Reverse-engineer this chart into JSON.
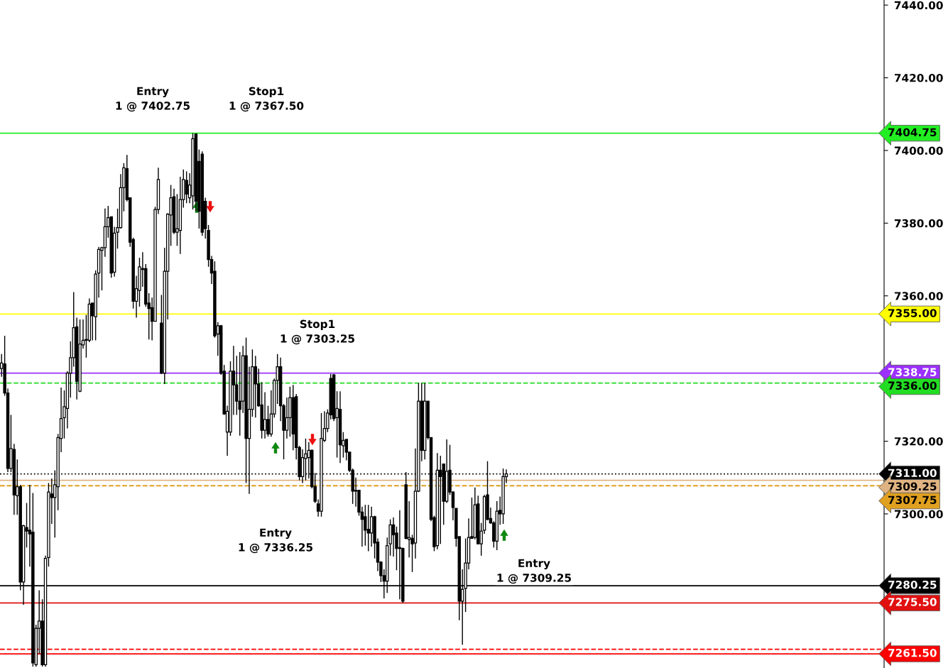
{
  "chart_data": {
    "type": "candlestick",
    "categories": [
      null,
      null,
      null,
      null,
      null,
      null,
      null,
      null,
      null,
      null,
      null,
      null,
      null,
      null,
      null,
      null,
      null,
      null,
      null,
      null,
      null,
      null,
      null,
      null,
      null,
      null,
      null,
      null,
      null,
      null,
      null,
      null,
      null,
      null,
      null,
      null,
      null,
      null,
      null,
      null,
      null,
      null,
      null,
      null,
      null,
      null,
      null,
      null,
      null,
      null,
      null,
      null,
      null,
      null,
      null,
      null,
      null,
      null,
      null,
      null,
      null,
      null,
      null,
      null,
      null,
      null,
      null,
      null,
      null,
      null,
      null,
      null,
      null,
      null,
      null,
      null,
      null,
      null,
      null,
      null,
      null,
      null,
      null,
      null,
      null,
      null,
      null,
      null,
      null,
      null,
      null,
      null,
      null,
      null,
      null,
      null,
      null,
      null,
      null,
      null,
      null,
      null,
      null,
      null,
      null,
      null,
      null,
      null,
      null,
      null,
      null,
      null,
      null,
      null,
      null,
      null,
      null,
      null,
      null,
      null,
      null,
      null,
      null,
      null,
      null,
      null,
      null,
      null,
      null,
      null,
      null,
      null,
      null,
      null,
      null,
      null,
      null,
      null,
      null,
      null,
      null,
      null,
      null,
      null,
      null,
      null,
      null,
      null,
      null,
      null,
      null,
      null,
      null,
      null,
      null,
      null,
      null,
      null,
      null,
      null,
      null,
      null,
      null,
      null,
      null,
      null,
      null,
      null,
      null,
      null,
      null,
      null,
      null,
      null,
      null,
      null,
      null,
      null,
      null,
      null,
      null,
      null,
      null,
      null,
      null,
      null,
      null,
      null,
      null,
      null,
      null,
      null,
      null,
      null,
      null,
      null,
      null,
      null,
      null,
      null,
      null,
      null,
      null,
      null,
      null,
      null,
      null,
      null,
      null,
      null,
      null,
      null,
      null,
      null,
      null,
      null,
      null,
      null,
      null,
      null,
      null,
      null,
      null,
      null,
      null,
      null,
      null,
      null,
      null,
      null,
      null,
      null,
      null,
      null,
      null,
      null,
      null,
      null,
      null,
      null,
      null,
      null,
      null,
      null,
      null,
      null,
      null,
      null,
      null,
      null,
      null,
      null,
      null,
      null,
      null,
      null,
      null,
      null,
      null,
      null,
      null,
      null,
      null,
      null,
      null,
      null,
      null,
      null,
      null,
      null,
      null,
      null,
      null,
      null,
      null,
      null,
      null,
      null,
      null,
      null,
      null,
      null
    ],
    "ohlc": [
      [
        7340,
        7344,
        7337.75,
        7341.5
      ],
      [
        7341.25,
        7349,
        7332.5,
        7333.25
      ],
      [
        7333.25,
        7334.5,
        7311.5,
        7312.5
      ],
      [
        7312.5,
        7327.25,
        7311.5,
        7318
      ],
      [
        7317.75,
        7319.25,
        7299.75,
        7305.25
      ],
      [
        7305,
        7315,
        7299.75,
        7307.5
      ],
      [
        7307.5,
        7308,
        7279,
        7281.25
      ],
      [
        7281.25,
        7297,
        7275,
        7296.75
      ],
      [
        7296.25,
        7303,
        7290.75,
        7295.25
      ],
      [
        7295.5,
        7308,
        7285.5,
        7294.5
      ],
      [
        7295,
        7305.75,
        7258,
        7259
      ],
      [
        7258.5,
        7269.5,
        7258,
        7268.5
      ],
      [
        7268.5,
        7279,
        7261.5,
        7270.5
      ],
      [
        7270.5,
        7276.5,
        7258,
        7258.5
      ],
      [
        7258.5,
        7288.5,
        7258,
        7287.75
      ],
      [
        7288,
        7308.5,
        7285.5,
        7306
      ],
      [
        7305.5,
        7309.75,
        7297.25,
        7304.5
      ],
      [
        7304.5,
        7312,
        7293.5,
        7308
      ],
      [
        7307.5,
        7322,
        7301,
        7321
      ],
      [
        7320.75,
        7334.75,
        7317,
        7326.25
      ],
      [
        7326.5,
        7334,
        7320.75,
        7329.5
      ],
      [
        7329,
        7339.25,
        7323.5,
        7338.75
      ],
      [
        7338.75,
        7347.5,
        7332,
        7343
      ],
      [
        7343,
        7361,
        7340.5,
        7351.25
      ],
      [
        7351.5,
        7354,
        7331.5,
        7336.5
      ],
      [
        7333.75,
        7353.5,
        7333.5,
        7346.75
      ],
      [
        7346.5,
        7353.5,
        7345.5,
        7347.75
      ],
      [
        7348,
        7354.75,
        7343,
        7347.75
      ],
      [
        7347.75,
        7359.25,
        7347.25,
        7357.75
      ],
      [
        7358,
        7358,
        7347.75,
        7354.5
      ],
      [
        7354.25,
        7367,
        7347.75,
        7366
      ],
      [
        7366.25,
        7373.5,
        7359.5,
        7372.75
      ],
      [
        7372.5,
        7373.5,
        7361.5,
        7373.25
      ],
      [
        7373.25,
        7384,
        7370.75,
        7379
      ],
      [
        7379,
        7384.75,
        7376,
        7381.5
      ],
      [
        7381.75,
        7381.75,
        7365,
        7366.25
      ],
      [
        7366.5,
        7379,
        7365.25,
        7377.25
      ],
      [
        7377.5,
        7384,
        7373,
        7378.75
      ],
      [
        7378.75,
        7393.5,
        7378.5,
        7389.75
      ],
      [
        7389.75,
        7396.5,
        7383.25,
        7395.25
      ],
      [
        7395,
        7398.75,
        7386,
        7386.5
      ],
      [
        7387,
        7387,
        7373.5,
        7374.75
      ],
      [
        7375.5,
        7376,
        7356.5,
        7358.5
      ],
      [
        7358.5,
        7365.5,
        7354,
        7362
      ],
      [
        7361.5,
        7370.5,
        7357,
        7368
      ],
      [
        7367.25,
        7372,
        7362.5,
        7367.5
      ],
      [
        7367.5,
        7368.75,
        7357,
        7357.75
      ],
      [
        7358,
        7360.75,
        7348,
        7356.5
      ],
      [
        7356.75,
        7359.5,
        7347.75,
        7353
      ],
      [
        7353,
        7384.5,
        7353,
        7383.75
      ],
      [
        7383.75,
        7395.25,
        7382.5,
        7392
      ],
      [
        7352.5,
        7360.25,
        7338.5,
        7338.75
      ],
      [
        7338.75,
        7373.25,
        7335.75,
        7366.75
      ],
      [
        7366.75,
        7382.75,
        7353.5,
        7382.5
      ],
      [
        7382.25,
        7390.5,
        7373.75,
        7387
      ],
      [
        7387.25,
        7389.5,
        7377,
        7377.5
      ],
      [
        7377.5,
        7388,
        7373.75,
        7378.5
      ],
      [
        7378,
        7392.75,
        7371.5,
        7386.5
      ],
      [
        7386.5,
        7394.75,
        7384.25,
        7392
      ],
      [
        7391.75,
        7394.25,
        7385.5,
        7388
      ],
      [
        7387,
        7393.75,
        7385.5,
        7390.5
      ],
      [
        7387.5,
        7404.75,
        7383.75,
        7403.25
      ],
      [
        7404.5,
        7404.75,
        7383.25,
        7386
      ],
      [
        7397,
        7400.25,
        7378.5,
        7383.25
      ],
      [
        7399,
        7399.75,
        7376.5,
        7377.5
      ],
      [
        7386,
        7387,
        7375.75,
        7378.5
      ],
      [
        7378,
        7379.5,
        7368,
        7370
      ],
      [
        7370,
        7371,
        7363.25,
        7366.25
      ],
      [
        7366.75,
        7369.5,
        7348.5,
        7349
      ],
      [
        7349.5,
        7352.75,
        7343.5,
        7351.75
      ],
      [
        7351.75,
        7352,
        7338.25,
        7338.75
      ],
      [
        7339.25,
        7341,
        7327.25,
        7327.5
      ],
      [
        7322.5,
        7329.75,
        7316,
        7328.25
      ],
      [
        7322.5,
        7342,
        7321.5,
        7339.25
      ],
      [
        7339.25,
        7346.25,
        7327.25,
        7335.5
      ],
      [
        7335.5,
        7343.5,
        7327.25,
        7331
      ],
      [
        7331,
        7344.5,
        7321.5,
        7328.75
      ],
      [
        7331,
        7346.25,
        7327.75,
        7343.5
      ],
      [
        7343.5,
        7348.5,
        7308.5,
        7320.75
      ],
      [
        7320.75,
        7340.5,
        7305.5,
        7328.75
      ],
      [
        7328.75,
        7345.25,
        7326.75,
        7340.5
      ],
      [
        7340.5,
        7343.5,
        7326.5,
        7335.75
      ],
      [
        7335.75,
        7340,
        7329.5,
        7329.75
      ],
      [
        7330,
        7336.25,
        7320.75,
        7323
      ],
      [
        7323,
        7333.5,
        7320.75,
        7326
      ],
      [
        7326,
        7329.75,
        7321.25,
        7322
      ],
      [
        7322,
        7334,
        7321.25,
        7327.5
      ],
      [
        7327.5,
        7337.25,
        7326.5,
        7336.75
      ],
      [
        7336.75,
        7344,
        7330.25,
        7340.5
      ],
      [
        7340.5,
        7343,
        7325.5,
        7329.75
      ],
      [
        7329.75,
        7330.25,
        7315,
        7323
      ],
      [
        7323,
        7332,
        7320.75,
        7326.5
      ],
      [
        7326.5,
        7335,
        7321.25,
        7332
      ],
      [
        7332,
        7335.5,
        7317.5,
        7322
      ],
      [
        7332.25,
        7333,
        7315,
        7318.25
      ],
      [
        7318.25,
        7318.75,
        7309.25,
        7310.25
      ],
      [
        7310.25,
        7317.75,
        7308.5,
        7315.5
      ],
      [
        7315.25,
        7320.75,
        7309.25,
        7316.5
      ],
      [
        7315.5,
        7319.75,
        7309.75,
        7317.5
      ],
      [
        7317.5,
        7317.75,
        7307,
        7307.5
      ],
      [
        7307.5,
        7311.25,
        7303,
        7303.5
      ],
      [
        7302.75,
        7304,
        7299.25,
        7300.75
      ],
      [
        7300.75,
        7327.75,
        7299.25,
        7320.75
      ],
      [
        7320.25,
        7328.25,
        7319.75,
        7323.5
      ],
      [
        7323.5,
        7328.75,
        7322.5,
        7327.75
      ],
      [
        7337.25,
        7338.5,
        7326,
        7327.25
      ],
      [
        7338.25,
        7338.5,
        7325.5,
        7326.25
      ],
      [
        7326.5,
        7333.75,
        7315.5,
        7329
      ],
      [
        7328.75,
        7333.75,
        7314,
        7319
      ],
      [
        7318.75,
        7322.5,
        7315.5,
        7320.25
      ],
      [
        7320.5,
        7320.5,
        7314.75,
        7317
      ],
      [
        7317,
        7317,
        7311.5,
        7312
      ],
      [
        7312,
        7312.5,
        7302.75,
        7306.25
      ],
      [
        7306.5,
        7310,
        7302,
        7306.25
      ],
      [
        7306.5,
        7306.5,
        7299.5,
        7300.5
      ],
      [
        7300.5,
        7302,
        7291,
        7298.5
      ],
      [
        7299.25,
        7302.5,
        7291.25,
        7295.5
      ],
      [
        7295.75,
        7302.5,
        7289.75,
        7294.75
      ],
      [
        7294.75,
        7302,
        7291,
        7299.25
      ],
      [
        7299.25,
        7299.5,
        7287.75,
        7292
      ],
      [
        7292.25,
        7293.25,
        7284.25,
        7286.75
      ],
      [
        7286.75,
        7287,
        7281.25,
        7283
      ],
      [
        7283,
        7284.75,
        7276.75,
        7281.5
      ],
      [
        7281.5,
        7293.5,
        7278.25,
        7291.25
      ],
      [
        7291.75,
        7298.5,
        7288.5,
        7297
      ],
      [
        7297,
        7299,
        7288.25,
        7294.25
      ],
      [
        7294.75,
        7296.5,
        7284.5,
        7290.5
      ],
      [
        7290.75,
        7301,
        7276.5,
        7290.5
      ],
      [
        7290.5,
        7290.75,
        7275.5,
        7276
      ],
      [
        7308,
        7311.5,
        7293,
        7293.25
      ],
      [
        7293,
        7303.5,
        7288,
        7293.5
      ],
      [
        7293.25,
        7294.25,
        7284,
        7291.75
      ],
      [
        7292,
        7318,
        7287.75,
        7306.25
      ],
      [
        7306.25,
        7336,
        7306,
        7331
      ],
      [
        7331,
        7336,
        7314.5,
        7317.5
      ],
      [
        7317.5,
        7336,
        7315,
        7331
      ],
      [
        7331,
        7331,
        7320.5,
        7321
      ],
      [
        7321,
        7321,
        7298,
        7298.5
      ],
      [
        7299,
        7299.5,
        7289.75,
        7291
      ],
      [
        7291.25,
        7316.75,
        7290.25,
        7312
      ],
      [
        7312,
        7316,
        7291.75,
        7310.25
      ],
      [
        7313.75,
        7313.75,
        7297,
        7303.5
      ],
      [
        7303.5,
        7320.5,
        7303,
        7311.75
      ],
      [
        7312,
        7319,
        7305.25,
        7306
      ],
      [
        7306,
        7306.25,
        7298.25,
        7301.75
      ],
      [
        7301.5,
        7301.5,
        7291,
        7293.25
      ],
      [
        7293.75,
        7293.75,
        7270.75,
        7276
      ],
      [
        7276,
        7284.75,
        7264,
        7279.25
      ],
      [
        7279.5,
        7293.25,
        7273,
        7286.5
      ],
      [
        7286.5,
        7298.75,
        7284.75,
        7293.5
      ],
      [
        7293.75,
        7304.5,
        7293.25,
        7293.25
      ],
      [
        7293.5,
        7307.25,
        7293,
        7302.5
      ],
      [
        7302.75,
        7305,
        7291.75,
        7291.75
      ],
      [
        7291.75,
        7297.5,
        7288.5,
        7295.25
      ],
      [
        7295.5,
        7305.25,
        7294.5,
        7304.75
      ],
      [
        7305.25,
        7314.5,
        7298.25,
        7298.5
      ],
      [
        7298.75,
        7301.75,
        7297.25,
        7297.5
      ],
      [
        7297.5,
        7298,
        7290.75,
        7292.5
      ],
      [
        7292.5,
        7303.5,
        7290,
        7300.75
      ],
      [
        7301,
        7304.75,
        7297,
        7300
      ],
      [
        7300,
        7312.5,
        7297.25,
        7310.25
      ],
      [
        7310.25,
        7312.25,
        7308.5,
        7311
      ],
      null,
      null,
      null,
      null,
      null,
      null,
      null,
      null,
      null,
      null,
      null,
      null,
      null,
      null,
      null,
      null,
      null,
      null,
      null,
      null,
      null,
      null,
      null,
      null,
      null,
      null,
      null,
      null,
      null,
      null,
      null,
      null,
      null,
      null,
      null,
      null,
      null,
      null,
      null,
      null,
      null,
      null,
      null,
      null,
      null,
      null,
      null,
      null,
      null,
      null,
      null,
      null,
      null,
      null,
      null,
      null,
      null,
      null,
      null,
      null,
      null,
      null,
      null,
      null,
      null,
      null,
      null,
      null,
      null,
      null,
      null,
      null,
      null,
      null,
      null,
      null,
      null,
      null,
      null,
      null,
      null,
      null,
      null,
      null,
      null,
      null,
      null,
      null,
      null,
      null,
      null,
      null,
      null,
      null,
      null,
      null,
      null,
      null,
      null,
      null,
      null,
      null,
      null,
      null,
      null,
      null,
      null,
      null,
      null,
      null,
      null,
      null,
      null,
      null,
      null,
      null,
      null,
      null,
      null,
      null
    ],
    "ylim": [
      7257.6,
      7441.4
    ],
    "yticks": [
      {
        "value": 7300,
        "label": "7300.00"
      },
      {
        "value": 7320,
        "label": "7320.00"
      },
      {
        "value": 7360,
        "label": "7360.00"
      },
      {
        "value": 7380,
        "label": "7380.00"
      },
      {
        "value": 7400,
        "label": "7400.00"
      },
      {
        "value": 7420,
        "label": "7420.00"
      },
      {
        "value": 7440,
        "label": "7440.00"
      }
    ],
    "tick_labels": "y",
    "grid": false,
    "ref_lines": [
      {
        "axis": "y",
        "value": 7404.75,
        "label": "7404.75",
        "color": "#22ee22",
        "line_style": "solid"
      },
      {
        "axis": "y",
        "value": 7355.0,
        "label": "7355.00",
        "color": "#ffff00",
        "line_style": "solid"
      },
      {
        "axis": "y",
        "value": 7338.75,
        "label": "7338.75",
        "color": "#9b30ff",
        "line_style": "solid"
      },
      {
        "axis": "y",
        "value": 7336.0,
        "label": "7336.00",
        "color": "#22dd22",
        "line_style": "dashed"
      },
      {
        "axis": "y",
        "value": 7311.0,
        "label": "7311.00",
        "color": "#000000",
        "line_style": "dotted"
      },
      {
        "axis": "y",
        "value": 7309.25,
        "label": "7309.25",
        "color": "#e0b482",
        "line_style": "solid"
      },
      {
        "axis": "y",
        "value": 7307.75,
        "label": "7307.75",
        "color": "#e0a020",
        "line_style": "dashed"
      },
      {
        "axis": "y",
        "value": 7280.25,
        "label": "7280.25",
        "color": "#000000",
        "line_style": "solid"
      },
      {
        "axis": "y",
        "value": 7275.5,
        "label": "7275.50",
        "color": "#e01010",
        "line_style": "solid"
      },
      {
        "axis": "y",
        "value": 7262.75,
        "label": null,
        "color": "#ff0000",
        "line_style": "dashed"
      },
      {
        "axis": "y",
        "value": 7261.5,
        "label": "7261.50",
        "color": "#ff0000",
        "line_style": "solid"
      }
    ],
    "annotations": [
      "Entry\n1 @ 7402.75",
      "Stop1\n1 @ 7367.50",
      "Entry\n1 @ 7336.25",
      "Stop1\n1 @ 7303.25",
      "Entry\n1 @ 7309.25"
    ]
  }
}
